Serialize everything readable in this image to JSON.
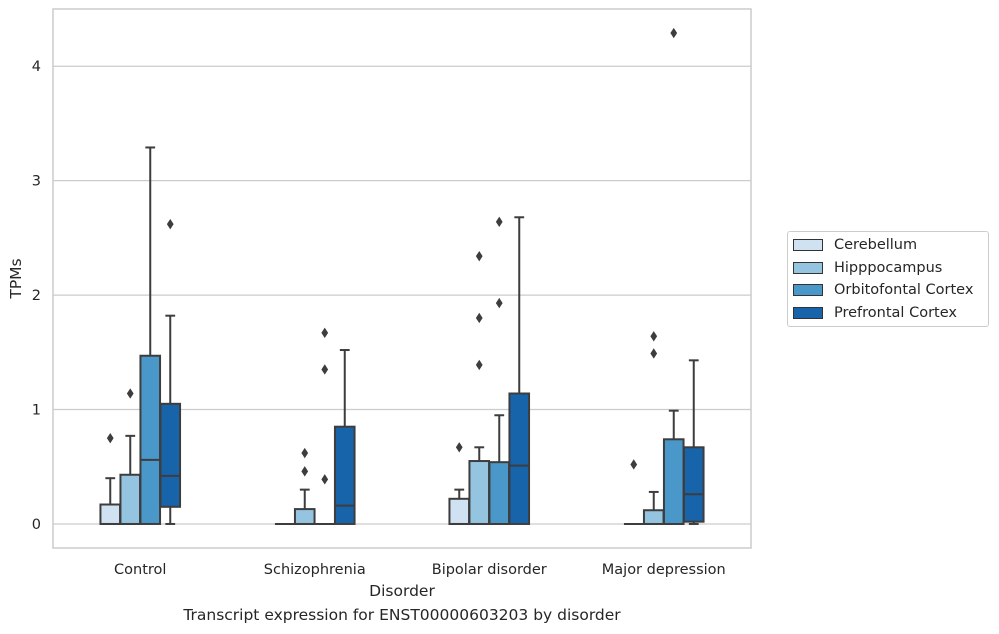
{
  "chart_data": {
    "type": "box",
    "caption": "Transcript expression for ENST00000603203 by disorder",
    "xlabel": "Disorder",
    "ylabel": "TPMs",
    "ylim": [
      -0.21,
      4.5
    ],
    "yticks": [
      0,
      1,
      2,
      3,
      4
    ],
    "grid": "horizontal",
    "legend_position": "right",
    "categories": [
      "Control",
      "Schizophrenia",
      "Bipolar disorder",
      "Major depression"
    ],
    "series": [
      {
        "name": "Cerebellum",
        "color": "#d0e1f2",
        "boxes": [
          {
            "whislo": 0,
            "q1": 0,
            "med": 0,
            "q3": 0.17,
            "whishi": 0.4,
            "fliers": [
              0.75
            ]
          },
          {
            "whislo": 0,
            "q1": 0,
            "med": 0,
            "q3": 0,
            "whishi": 0,
            "fliers": []
          },
          {
            "whislo": 0,
            "q1": 0,
            "med": 0,
            "q3": 0.22,
            "whishi": 0.3,
            "fliers": [
              0.67
            ]
          },
          {
            "whislo": 0,
            "q1": 0,
            "med": 0,
            "q3": 0,
            "whishi": 0,
            "fliers": [
              0.52
            ]
          }
        ]
      },
      {
        "name": "Hipppocampus",
        "color": "#94c4df",
        "boxes": [
          {
            "whislo": 0,
            "q1": 0,
            "med": 0,
            "q3": 0.43,
            "whishi": 0.77,
            "fliers": [
              1.14
            ]
          },
          {
            "whislo": 0,
            "q1": 0,
            "med": 0,
            "q3": 0.13,
            "whishi": 0.3,
            "fliers": [
              0.46,
              0.62
            ]
          },
          {
            "whislo": 0,
            "q1": 0,
            "med": 0,
            "q3": 0.55,
            "whishi": 0.67,
            "fliers": [
              1.39,
              1.8,
              2.34
            ]
          },
          {
            "whislo": 0,
            "q1": 0,
            "med": 0,
            "q3": 0.12,
            "whishi": 0.28,
            "fliers": [
              1.49,
              1.64
            ]
          }
        ]
      },
      {
        "name": "Orbitofontal Cortex",
        "color": "#4a98c9",
        "boxes": [
          {
            "whislo": 0,
            "q1": 0,
            "med": 0.56,
            "q3": 1.47,
            "whishi": 3.29,
            "fliers": []
          },
          {
            "whislo": 0,
            "q1": 0,
            "med": 0,
            "q3": 0,
            "whishi": 0,
            "fliers": [
              0.39,
              1.35,
              1.67
            ]
          },
          {
            "whislo": 0,
            "q1": 0,
            "med": 0,
            "q3": 0.54,
            "whishi": 0.95,
            "fliers": [
              1.93,
              2.64
            ]
          },
          {
            "whislo": 0,
            "q1": 0,
            "med": 0,
            "q3": 0.74,
            "whishi": 0.99,
            "fliers": [
              4.29
            ]
          }
        ]
      },
      {
        "name": "Prefrontal Cortex",
        "color": "#1764ab",
        "boxes": [
          {
            "whislo": 0,
            "q1": 0.15,
            "med": 0.42,
            "q3": 1.05,
            "whishi": 1.82,
            "fliers": [
              2.62
            ]
          },
          {
            "whislo": 0,
            "q1": 0,
            "med": 0.16,
            "q3": 0.85,
            "whishi": 1.52,
            "fliers": []
          },
          {
            "whislo": 0,
            "q1": 0,
            "med": 0.51,
            "q3": 1.14,
            "whishi": 2.68,
            "fliers": []
          },
          {
            "whislo": 0,
            "q1": 0.02,
            "med": 0.26,
            "q3": 0.67,
            "whishi": 1.43,
            "fliers": []
          }
        ]
      }
    ]
  }
}
